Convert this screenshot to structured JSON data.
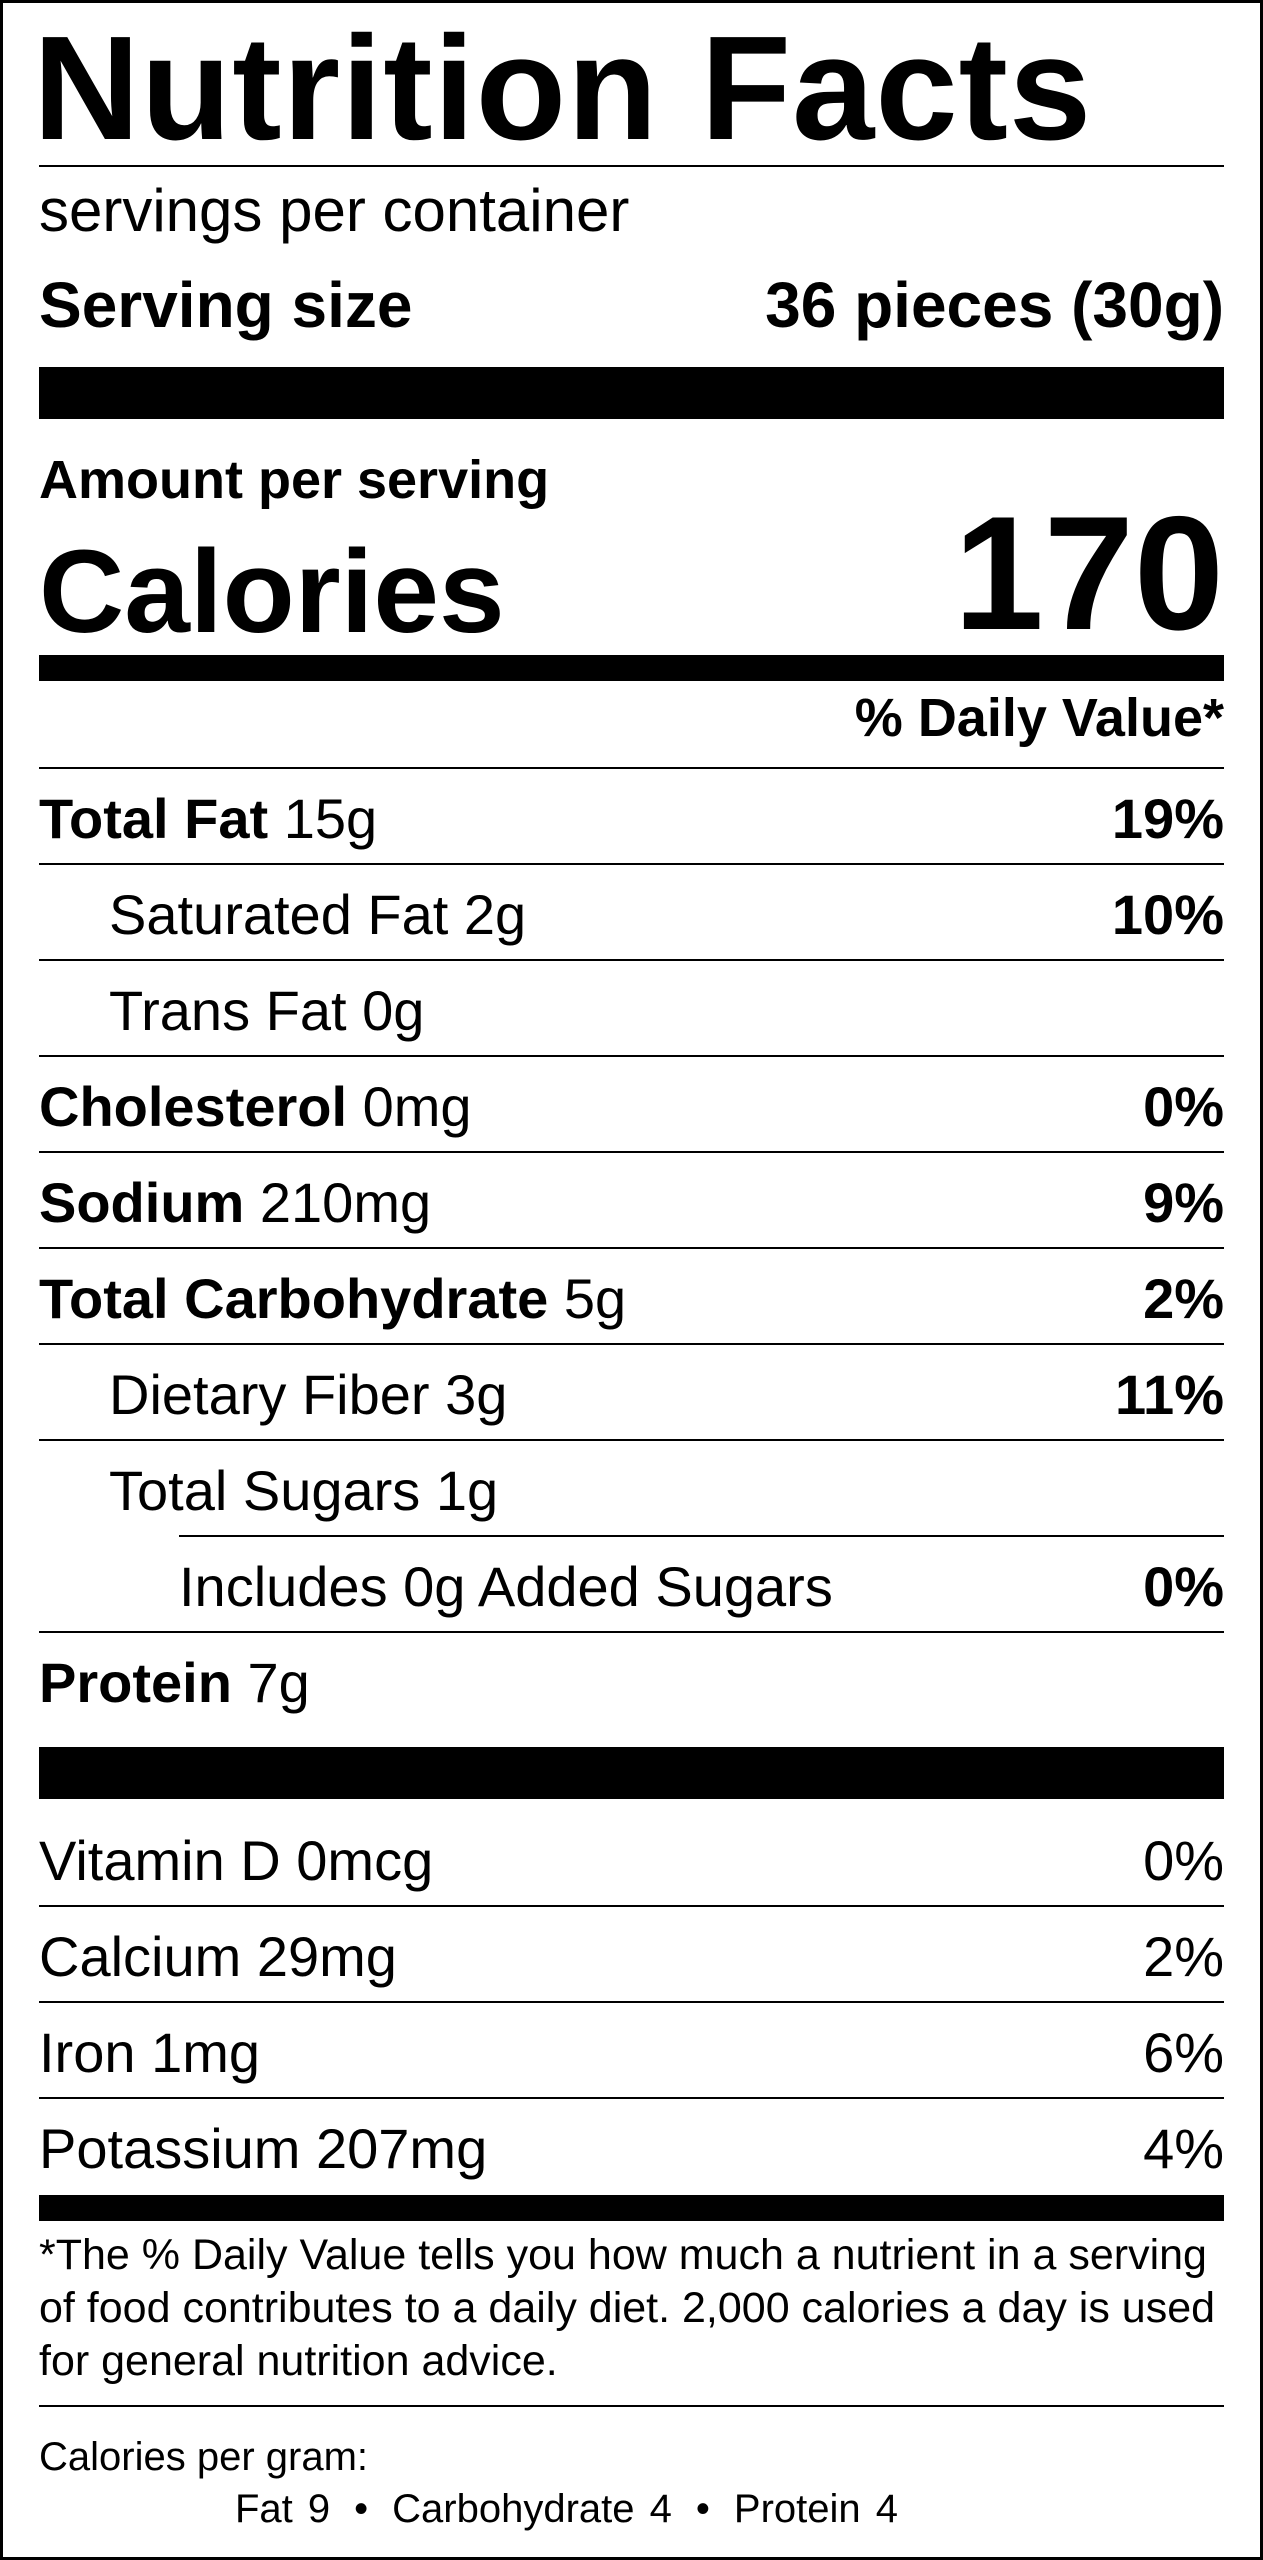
{
  "label": {
    "title": "Nutrition Facts",
    "servings_per_container": "servings per container",
    "serving_size_label": "Serving size",
    "serving_size_value": "36 pieces (30g)",
    "amount_per_serving": "Amount per serving",
    "calories_label": "Calories",
    "calories_value": "170",
    "daily_value_header": "% Daily Value*",
    "nutrients": [
      {
        "name": "Total Fat",
        "amount": "15g",
        "dv": "19%"
      },
      {
        "name": "Saturated Fat",
        "amount": "2g",
        "dv": "10%"
      },
      {
        "name": "Trans Fat",
        "amount": "0g",
        "dv": ""
      },
      {
        "name": "Cholesterol",
        "amount": "0mg",
        "dv": "0%"
      },
      {
        "name": "Sodium",
        "amount": "210mg",
        "dv": "9%"
      },
      {
        "name": "Total Carbohydrate",
        "amount": "5g",
        "dv": "2%"
      },
      {
        "name": "Dietary Fiber",
        "amount": "3g",
        "dv": "11%"
      },
      {
        "name": "Total Sugars",
        "amount": "1g",
        "dv": ""
      },
      {
        "name": "Includes 0g Added Sugars",
        "amount": "",
        "dv": "0%"
      },
      {
        "name": "Protein",
        "amount": "7g",
        "dv": ""
      }
    ],
    "vitamins": [
      {
        "name": "Vitamin D",
        "amount": "0mcg",
        "dv": "0%"
      },
      {
        "name": "Calcium",
        "amount": "29mg",
        "dv": "2%"
      },
      {
        "name": "Iron",
        "amount": "1mg",
        "dv": "6%"
      },
      {
        "name": "Potassium",
        "amount": "207mg",
        "dv": "4%"
      }
    ],
    "footnote": "*The % Daily Value tells you how much a nutrient in a serving of food contributes to a daily diet. 2,000 calories a day is used for general nutrition advice.",
    "calories_per_gram_label": "Calories per gram:",
    "calories_per_gram": {
      "fat": "Fat 9",
      "carbohydrate": "Carbohydrate 4",
      "protein": "Protein 4",
      "separator": "•"
    }
  }
}
